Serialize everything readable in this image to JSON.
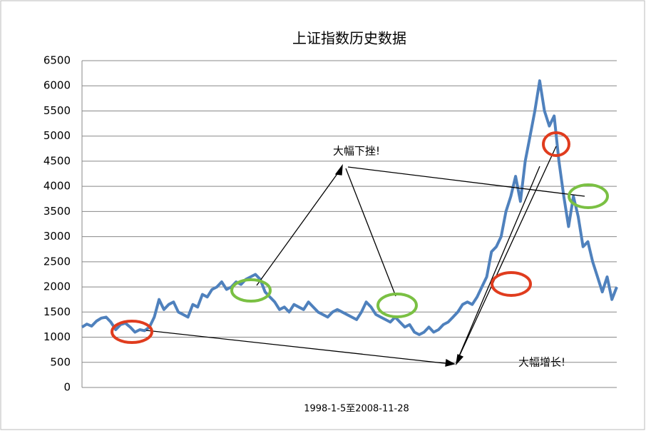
{
  "chart_data": {
    "type": "line",
    "title": "上证指数历史数据",
    "x_label": "1998-1-5至2008-11-28",
    "annotations": [
      "大幅下挫!",
      "大幅增长!"
    ],
    "color": "#4f81bd",
    "ylim": [
      0,
      6500
    ],
    "yticks": [
      0,
      500,
      1000,
      1500,
      2000,
      2500,
      3000,
      3500,
      4000,
      4500,
      5000,
      5500,
      6000,
      6500
    ],
    "grid": true,
    "values": [
      1200,
      1260,
      1220,
      1320,
      1380,
      1400,
      1300,
      1150,
      1250,
      1280,
      1200,
      1100,
      1150,
      1130,
      1200,
      1400,
      1750,
      1550,
      1650,
      1700,
      1500,
      1450,
      1400,
      1650,
      1600,
      1850,
      1800,
      1950,
      2000,
      2100,
      1950,
      2000,
      2100,
      2050,
      2150,
      2200,
      2250,
      2150,
      1900,
      1800,
      1700,
      1550,
      1600,
      1500,
      1650,
      1600,
      1550,
      1700,
      1600,
      1500,
      1450,
      1400,
      1500,
      1550,
      1500,
      1450,
      1400,
      1350,
      1500,
      1700,
      1600,
      1450,
      1400,
      1350,
      1300,
      1400,
      1300,
      1200,
      1250,
      1100,
      1050,
      1100,
      1200,
      1100,
      1150,
      1250,
      1300,
      1400,
      1500,
      1650,
      1700,
      1650,
      1800,
      2000,
      2200,
      2700,
      2800,
      3000,
      3500,
      3800,
      4200,
      3700,
      4500,
      5000,
      5500,
      6100,
      5500,
      5200,
      5400,
      4500,
      3800,
      3200,
      3800,
      3400,
      2800,
      2900,
      2500,
      2200,
      1900,
      2200,
      1750,
      2000
    ]
  }
}
